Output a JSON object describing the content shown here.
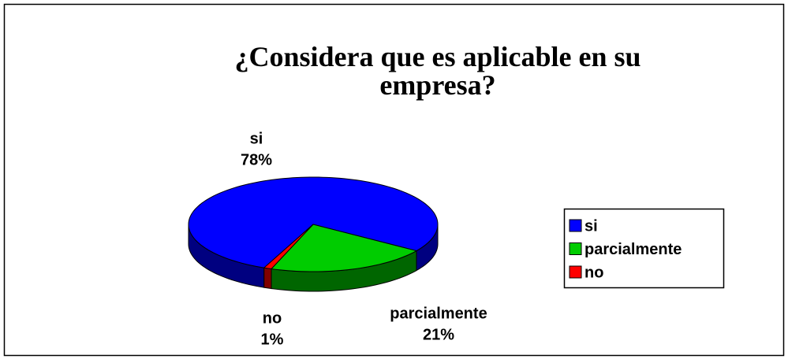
{
  "chart_data": {
    "type": "pie",
    "title": "¿Considera que es aplicable en su empresa?",
    "categories": [
      "si",
      "parcialmente",
      "no"
    ],
    "values": [
      78,
      21,
      1
    ],
    "value_labels": [
      "78%",
      "21%",
      "1%"
    ],
    "colors": [
      "#0000ff",
      "#00cc00",
      "#ff0000"
    ],
    "legend": "right"
  }
}
